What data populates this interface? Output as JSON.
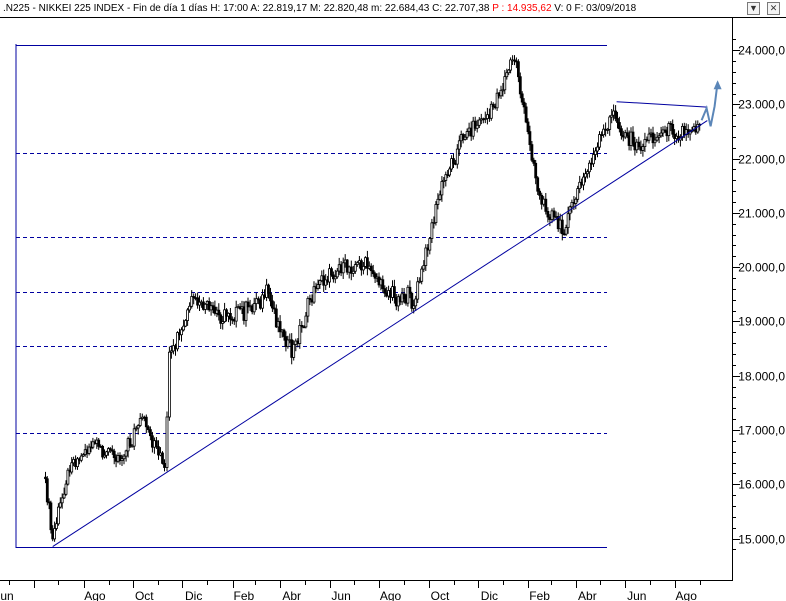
{
  "window": {
    "title_prefix": ".N225 - NIKKEI 225 INDEX - Fin de día 1 días  H: 17:00  A: 22.819,17  M: 22.820,48  m: 22.684,43  C: 22.707,38",
    "title_p": "P : 14.935,62",
    "title_suffix": "V: 0  F: 03/09/2018",
    "dropdown_icon": "▼",
    "close_icon": "✕"
  },
  "chart_data": {
    "type": "candlestick",
    "instrument": ".N225 - NIKKEI 225 INDEX",
    "timeframe": "Fin de día 1 días",
    "last_bar": {
      "time": "17:00",
      "open": 22819.17,
      "high": 22820.48,
      "low": 22684.43,
      "close": 22707.38,
      "date": "03/09/2018",
      "volume": 0
    },
    "x_tick_labels": [
      "Jun",
      "Ago",
      "Oct",
      "Dic",
      "Feb",
      "Abr",
      "Jun",
      "Ago",
      "Oct",
      "Dic",
      "Feb",
      "Abr",
      "Jun",
      "Ago"
    ],
    "y_tick_labels": [
      "15.000,0",
      "16.000,0",
      "17.000,0",
      "18.000,0",
      "19.000,0",
      "20.000,0",
      "21.000,0",
      "22.000,0",
      "23.000,0",
      "24.000,0"
    ],
    "y_ticks": [
      15000,
      16000,
      17000,
      18000,
      19000,
      20000,
      21000,
      22000,
      23000,
      24000
    ],
    "ylim": [
      14750,
      24300
    ],
    "price_path": [
      {
        "date": "2016-06",
        "value": 16000
      },
      {
        "date": "2016-06-24",
        "value": 14950
      },
      {
        "date": "2016-07",
        "value": 16400
      },
      {
        "date": "2016-08",
        "value": 16700
      },
      {
        "date": "2016-09",
        "value": 16500
      },
      {
        "date": "2016-10",
        "value": 17200
      },
      {
        "date": "2016-11-09",
        "value": 16250
      },
      {
        "date": "2016-11",
        "value": 18300
      },
      {
        "date": "2016-12",
        "value": 19400
      },
      {
        "date": "2017-01",
        "value": 19100
      },
      {
        "date": "2017-02",
        "value": 19200
      },
      {
        "date": "2017-03",
        "value": 19500
      },
      {
        "date": "2017-04",
        "value": 18400
      },
      {
        "date": "2017-05",
        "value": 19700
      },
      {
        "date": "2017-06",
        "value": 20000
      },
      {
        "date": "2017-07",
        "value": 20050
      },
      {
        "date": "2017-08",
        "value": 19500
      },
      {
        "date": "2017-09",
        "value": 19400
      },
      {
        "date": "2017-10",
        "value": 21400
      },
      {
        "date": "2017-11",
        "value": 22500
      },
      {
        "date": "2017-12",
        "value": 22800
      },
      {
        "date": "2018-01",
        "value": 23900
      },
      {
        "date": "2018-02",
        "value": 21300
      },
      {
        "date": "2018-03",
        "value": 20700
      },
      {
        "date": "2018-04",
        "value": 21800
      },
      {
        "date": "2018-05",
        "value": 22800
      },
      {
        "date": "2018-06",
        "value": 22200
      },
      {
        "date": "2018-07",
        "value": 22500
      },
      {
        "date": "2018-08",
        "value": 22500
      },
      {
        "date": "2018-09-03",
        "value": 22707
      }
    ],
    "horizontal_levels": [
      {
        "value": 24100,
        "style": "solid"
      },
      {
        "value": 22100,
        "style": "dashed"
      },
      {
        "value": 20550,
        "style": "dashed"
      },
      {
        "value": 19550,
        "style": "dashed"
      },
      {
        "value": 18550,
        "style": "dashed"
      },
      {
        "value": 16950,
        "style": "dashed"
      },
      {
        "value": 14850,
        "style": "solid"
      }
    ],
    "trendlines": [
      {
        "from": {
          "date": "2016-06-24",
          "value": 14850
        },
        "to": {
          "date": "2018-09-10",
          "value": 22700
        }
      },
      {
        "from": {
          "date": "2018-05-21",
          "value": 23050
        },
        "to": {
          "date": "2018-09-10",
          "value": 22950
        }
      }
    ],
    "projection_color": "#5b86b8",
    "line_color": "#0000a0",
    "price_color": "#000000",
    "grid": false
  }
}
